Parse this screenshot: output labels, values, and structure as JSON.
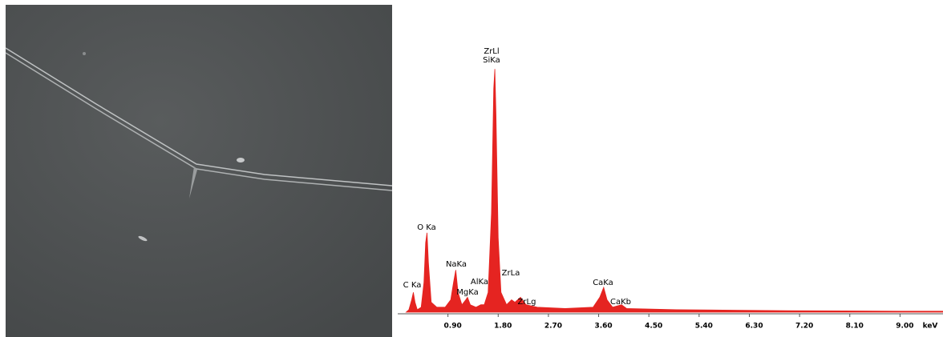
{
  "chart_data": {
    "type": "area",
    "color": "#e52421",
    "x": [
      0.15,
      0.2,
      0.25,
      0.28,
      0.31,
      0.35,
      0.42,
      0.47,
      0.5,
      0.525,
      0.55,
      0.6,
      0.7,
      0.85,
      0.95,
      1.0,
      1.04,
      1.08,
      1.15,
      1.22,
      1.25,
      1.3,
      1.4,
      1.49,
      1.55,
      1.62,
      1.68,
      1.72,
      1.74,
      1.76,
      1.8,
      1.85,
      1.95,
      2.04,
      2.1,
      2.2,
      2.3,
      2.5,
      3.0,
      3.5,
      3.62,
      3.69,
      3.75,
      3.85,
      4.01,
      4.1,
      5,
      6,
      7,
      8,
      9,
      9.77
    ],
    "values": [
      0,
      1,
      5,
      8,
      4,
      1,
      2,
      12,
      28,
      32,
      20,
      4,
      2,
      2,
      5,
      12,
      17,
      8,
      3,
      5,
      6,
      3,
      2,
      3,
      3,
      8,
      40,
      90,
      98,
      80,
      30,
      8,
      3,
      5,
      4,
      6,
      3,
      2,
      1.5,
      2,
      6,
      10,
      5,
      2,
      3,
      1.5,
      1,
      0.8,
      0.6,
      0.5,
      0.4,
      0.4
    ],
    "xlim": [
      0,
      9.77
    ],
    "ylim": [
      0,
      100
    ],
    "xticks": [
      {
        "value": 0.9,
        "label": "0.90"
      },
      {
        "value": 1.8,
        "label": "1.80"
      },
      {
        "value": 2.7,
        "label": "2.70"
      },
      {
        "value": 3.6,
        "label": "3.60"
      },
      {
        "value": 4.5,
        "label": "4.50"
      },
      {
        "value": 5.4,
        "label": "5.40"
      },
      {
        "value": 6.3,
        "label": "6.30"
      },
      {
        "value": 7.2,
        "label": "7.20"
      },
      {
        "value": 8.1,
        "label": "8.10"
      },
      {
        "value": 9.0,
        "label": "9.00"
      }
    ],
    "x_label": "keV",
    "annotations": [
      "ZrLl",
      "SiKa",
      "O Ka",
      "NaKa",
      "C Ka",
      "AlKa",
      "MgKa",
      "ZrLa",
      "ZrLg",
      "CaKa",
      "CaKb"
    ]
  }
}
